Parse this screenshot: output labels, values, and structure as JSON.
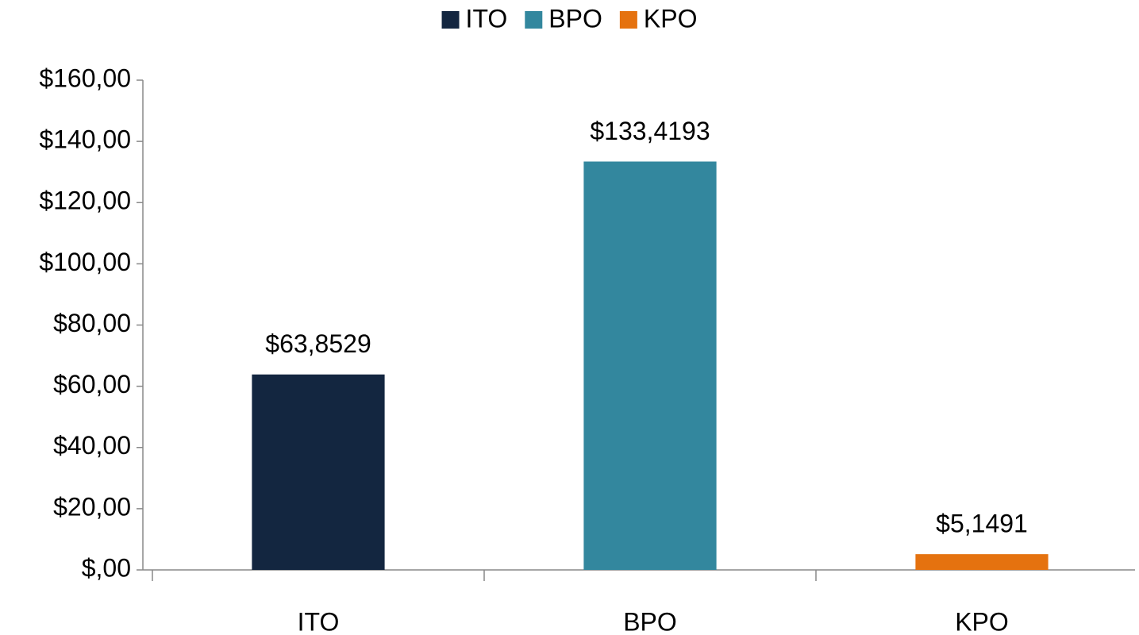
{
  "chart_data": {
    "type": "bar",
    "categories": [
      "ITO",
      "BPO",
      "KPO"
    ],
    "values": [
      63.8529,
      133.4193,
      5.1491
    ],
    "value_labels": [
      "$63,8529",
      "$133,4193",
      "$5,1491"
    ],
    "colors": [
      "#132640",
      "#33879e",
      "#e5720f"
    ],
    "ylim": [
      0,
      160
    ],
    "yticks": [
      {
        "value": 0,
        "label": "$,00"
      },
      {
        "value": 20,
        "label": "$20,00"
      },
      {
        "value": 40,
        "label": "$40,00"
      },
      {
        "value": 60,
        "label": "$60,00"
      },
      {
        "value": 80,
        "label": "$80,00"
      },
      {
        "value": 100,
        "label": "$100,00"
      },
      {
        "value": 120,
        "label": "$120,00"
      },
      {
        "value": 140,
        "label": "$140,00"
      },
      {
        "value": 160,
        "label": "$160,00"
      }
    ],
    "legend": "top"
  }
}
